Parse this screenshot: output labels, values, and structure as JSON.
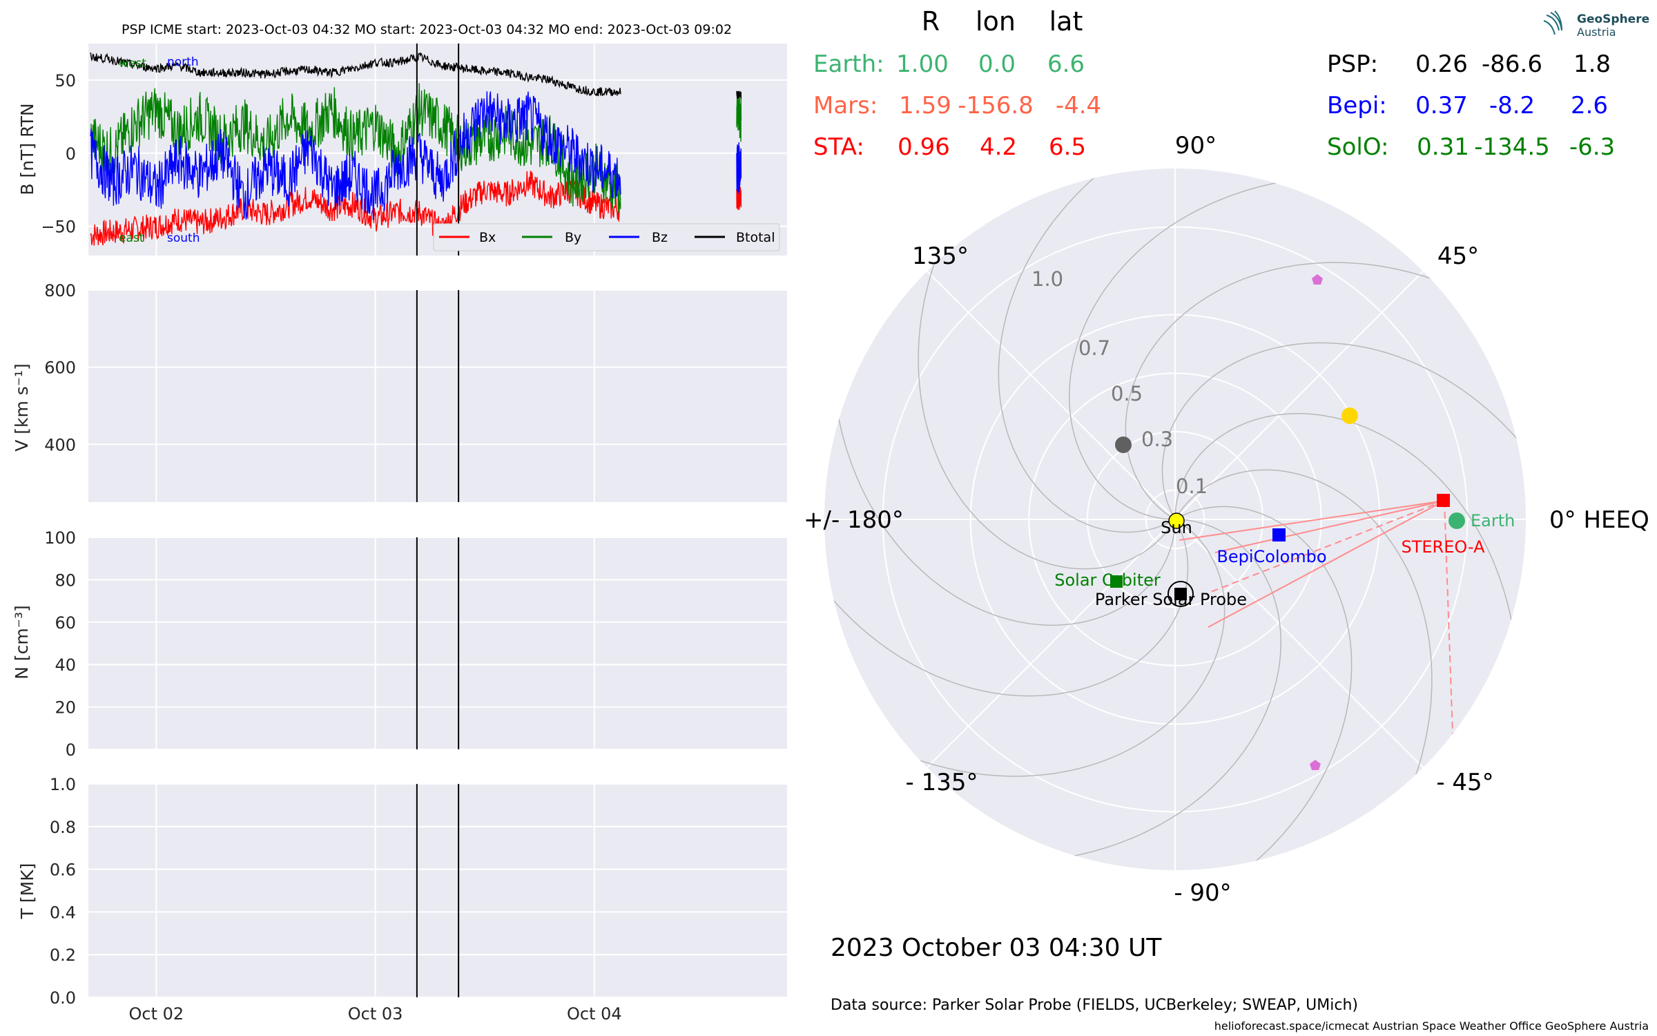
{
  "header": {
    "title": "PSP    ICME start: 2023-Oct-03 04:32   MO start: 2023-Oct-03 04:32   MO end: 2023-Oct-03 09:02"
  },
  "logo": {
    "name": "GeoSphere",
    "sub": "Austria"
  },
  "colors": {
    "bx": "#ff0000",
    "by": "#008000",
    "bz": "#0000ff",
    "btot": "#000000",
    "earth": "#3cb371",
    "mars": "#ff6347",
    "sta": "#ff0000",
    "psp": "#000000",
    "bepi": "#0000ff",
    "solo": "#008000",
    "panel_bg": "#eaeaf2"
  },
  "chart_data": [
    {
      "type": "line",
      "ylabel": "B [nT] RTN",
      "ylim": [
        -70,
        75
      ],
      "yticks": [
        "50",
        "0",
        "−50"
      ],
      "yticks_values": [
        50,
        0,
        -50
      ],
      "xticks": [
        "Oct 02",
        "Oct 03",
        "Oct 04"
      ],
      "xlim_days": [
        1.69,
        4.88
      ],
      "xticks_days": [
        2.0,
        3.0,
        4.0
      ],
      "markers_days": [
        3.19,
        3.38
      ],
      "annotations": {
        "north": "north",
        "south": "south",
        "west": "west",
        "east": "east"
      },
      "legend": [
        "Bx",
        "By",
        "Bz",
        "Btotal"
      ],
      "legend_position": "lower right",
      "data_gap_days": [
        4.13,
        4.65
      ],
      "series": [
        {
          "name": "Bx",
          "x": [
            1.7,
            1.8,
            1.9,
            2.0,
            2.1,
            2.2,
            2.3,
            2.4,
            2.5,
            2.6,
            2.7,
            2.8,
            2.9,
            3.0,
            3.1,
            3.2,
            3.3,
            3.4,
            3.5,
            3.6,
            3.7,
            3.8,
            3.9,
            4.0,
            4.1,
            4.12
          ],
          "values": [
            -56,
            -54,
            -52,
            -50,
            -45,
            -48,
            -44,
            -38,
            -42,
            -36,
            -30,
            -38,
            -35,
            -45,
            -40,
            -40,
            -52,
            -35,
            -25,
            -28,
            -20,
            -30,
            -25,
            -35,
            -38,
            -38
          ]
        },
        {
          "name": "By",
          "x": [
            1.7,
            1.8,
            1.9,
            2.0,
            2.1,
            2.2,
            2.3,
            2.4,
            2.5,
            2.6,
            2.7,
            2.8,
            2.9,
            3.0,
            3.1,
            3.2,
            3.3,
            3.4,
            3.5,
            3.6,
            3.7,
            3.8,
            3.9,
            4.0,
            4.1,
            4.12
          ],
          "values": [
            10,
            0,
            20,
            30,
            15,
            25,
            10,
            20,
            5,
            25,
            15,
            30,
            10,
            20,
            0,
            30,
            20,
            5,
            10,
            15,
            5,
            10,
            -20,
            -10,
            -25,
            -25
          ]
        },
        {
          "name": "Bz",
          "x": [
            1.7,
            1.8,
            1.9,
            2.0,
            2.1,
            2.2,
            2.3,
            2.4,
            2.5,
            2.6,
            2.7,
            2.8,
            2.9,
            3.0,
            3.1,
            3.2,
            3.3,
            3.4,
            3.5,
            3.6,
            3.7,
            3.8,
            3.9,
            4.0,
            4.1,
            4.12
          ],
          "values": [
            0,
            -20,
            -10,
            -25,
            -5,
            -15,
            0,
            -30,
            -10,
            -20,
            5,
            -25,
            -15,
            -30,
            -10,
            0,
            -20,
            10,
            30,
            20,
            25,
            10,
            0,
            -10,
            -15,
            -15
          ]
        },
        {
          "name": "Btotal",
          "x": [
            1.7,
            1.8,
            1.9,
            2.0,
            2.1,
            2.2,
            2.3,
            2.4,
            2.5,
            2.6,
            2.7,
            2.8,
            2.9,
            3.0,
            3.1,
            3.2,
            3.3,
            3.4,
            3.5,
            3.6,
            3.7,
            3.8,
            3.9,
            4.0,
            4.1,
            4.12
          ],
          "values": [
            66,
            64,
            60,
            58,
            60,
            55,
            55,
            55,
            54,
            56,
            57,
            55,
            58,
            62,
            62,
            66,
            60,
            58,
            56,
            55,
            52,
            50,
            45,
            42,
            42,
            42
          ]
        }
      ]
    },
    {
      "type": "line",
      "ylabel": "V [km s⁻¹]",
      "ylim": [
        250,
        800
      ],
      "yticks": [
        "800",
        "600",
        "400"
      ],
      "yticks_values": [
        800,
        600,
        400
      ],
      "series": []
    },
    {
      "type": "line",
      "ylabel": "N [cm⁻³]",
      "ylim": [
        0,
        100
      ],
      "yticks": [
        "100",
        "80",
        "60",
        "40",
        "20",
        "0"
      ],
      "yticks_values": [
        100,
        80,
        60,
        40,
        20,
        0
      ],
      "series": []
    },
    {
      "type": "line",
      "ylabel": "T [MK]",
      "ylim": [
        0,
        1.0
      ],
      "yticks": [
        "1.0",
        "0.8",
        "0.6",
        "0.4",
        "0.2",
        "0.0"
      ],
      "yticks_values": [
        1.0,
        0.8,
        0.6,
        0.4,
        0.2,
        0.0
      ],
      "xticks": [
        "Oct 02",
        "Oct 03",
        "Oct 04"
      ],
      "series": []
    },
    {
      "type": "scatter",
      "projection": "polar",
      "angle_labels": {
        "a90": "90°",
        "a45": "45°",
        "a0": "0° HEEQ",
        "am45": "- 45°",
        "am90": "- 90°",
        "am135": "- 135°",
        "a180": "+/- 180°",
        "a135": "135°"
      },
      "rlabels": [
        "0.1",
        "0.3",
        "0.5",
        "0.7",
        "1.0"
      ],
      "rlabels_values": [
        0.1,
        0.3,
        0.5,
        0.7,
        1.0
      ],
      "bodies": [
        {
          "name": "Sun",
          "r": 0.0,
          "lon": 0.0
        },
        {
          "name": "Earth",
          "r": 1.0,
          "lon": 0.0
        },
        {
          "name": "STEREO-A",
          "r": 0.96,
          "lon": 4.2
        },
        {
          "name": "BepiColombo",
          "r": 0.37,
          "lon": -8.2
        },
        {
          "name": "Solar Orbiter",
          "r": 0.31,
          "lon": -134.5
        },
        {
          "name": "Parker Solar Probe",
          "r": 0.26,
          "lon": -86.6
        }
      ]
    }
  ],
  "positions": {
    "headers": {
      "r": "R",
      "lon": "lon",
      "lat": "lat"
    },
    "earth": {
      "label": "Earth:",
      "r": "1.00",
      "lon": "0.0",
      "lat": "6.6"
    },
    "mars": {
      "label": "Mars:",
      "r": "1.59",
      "lon": "-156.8",
      "lat": "-4.4"
    },
    "sta": {
      "label": "STA:",
      "r": "0.96",
      "lon": "4.2",
      "lat": "6.5"
    },
    "psp": {
      "label": "PSP:",
      "r": "0.26",
      "lon": "-86.6",
      "lat": "1.8"
    },
    "bepi": {
      "label": "Bepi:",
      "r": "0.37",
      "lon": "-8.2",
      "lat": "2.6"
    },
    "solo": {
      "label": "SolO:",
      "r": "0.31",
      "lon": "-134.5",
      "lat": "-6.3"
    }
  },
  "date": "2023 October 03  04:30 UT",
  "source": "Data source: Parker Solar Probe (FIELDS, UCBerkeley; SWEAP, UMich)",
  "footer": "helioforecast.space/icmecat   Austrian Space Weather Office   GeoSphere Austria"
}
